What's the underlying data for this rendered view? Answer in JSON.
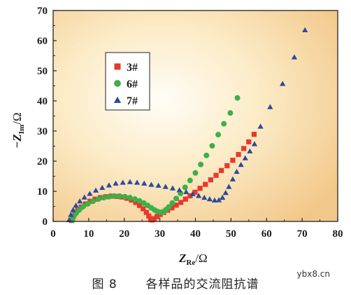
{
  "chart_data": {
    "type": "scatter",
    "xlabel_main": "Z",
    "xlabel_sub": "Re",
    "xlabel_unit": "/Ω",
    "ylabel_main": "−Z",
    "ylabel_sub": "Im",
    "ylabel_unit": "/Ω",
    "xlim": [
      0,
      80
    ],
    "ylim": [
      0,
      70
    ],
    "xticks": [
      "0",
      "10",
      "20",
      "30",
      "40",
      "50",
      "60",
      "70",
      "80"
    ],
    "yticks": [
      "0",
      "10",
      "20",
      "30",
      "40",
      "50",
      "60",
      "70"
    ],
    "legend_position": "upper-left",
    "series": [
      {
        "name": "3#",
        "marker": "square",
        "color": "#e8382b",
        "points": [
          [
            5.2,
            0.3
          ],
          [
            5.5,
            1.4
          ],
          [
            6.1,
            2.6
          ],
          [
            6.9,
            3.7
          ],
          [
            7.9,
            4.8
          ],
          [
            9.1,
            5.8
          ],
          [
            10.4,
            6.7
          ],
          [
            11.8,
            7.4
          ],
          [
            13.3,
            7.9
          ],
          [
            14.8,
            8.2
          ],
          [
            16.3,
            8.4
          ],
          [
            17.8,
            8.3
          ],
          [
            19.3,
            8.1
          ],
          [
            20.7,
            7.7
          ],
          [
            22.0,
            7.1
          ],
          [
            23.2,
            6.3
          ],
          [
            24.3,
            5.3
          ],
          [
            25.3,
            4.2
          ],
          [
            26.2,
            3.0
          ],
          [
            26.9,
            1.8
          ],
          [
            27.4,
            0.8
          ],
          [
            27.8,
            0.5
          ],
          [
            28.4,
            0.9
          ],
          [
            29.2,
            1.6
          ],
          [
            30.1,
            2.3
          ],
          [
            31.1,
            3.0
          ],
          [
            32.2,
            3.7
          ],
          [
            33.4,
            4.5
          ],
          [
            34.6,
            5.4
          ],
          [
            35.9,
            6.3
          ],
          [
            37.2,
            7.4
          ],
          [
            38.5,
            8.5
          ],
          [
            39.9,
            9.7
          ],
          [
            41.3,
            11.0
          ],
          [
            42.8,
            12.3
          ],
          [
            44.3,
            13.8
          ],
          [
            45.8,
            15.3
          ],
          [
            47.3,
            16.9
          ],
          [
            48.9,
            18.5
          ],
          [
            50.5,
            20.3
          ],
          [
            52.1,
            22.2
          ],
          [
            53.6,
            24.2
          ],
          [
            55.0,
            26.4
          ],
          [
            56.5,
            28.9
          ]
        ]
      },
      {
        "name": "6#",
        "marker": "circle",
        "color": "#3cb04a",
        "points": [
          [
            5.4,
            0.4
          ],
          [
            5.8,
            1.6
          ],
          [
            6.5,
            2.8
          ],
          [
            7.4,
            3.9
          ],
          [
            8.5,
            5.0
          ],
          [
            9.8,
            5.9
          ],
          [
            11.2,
            6.7
          ],
          [
            12.7,
            7.4
          ],
          [
            14.2,
            7.9
          ],
          [
            15.7,
            8.2
          ],
          [
            17.2,
            8.4
          ],
          [
            18.7,
            8.4
          ],
          [
            20.2,
            8.2
          ],
          [
            21.6,
            7.9
          ],
          [
            23.0,
            7.4
          ],
          [
            24.3,
            6.8
          ],
          [
            25.5,
            6.1
          ],
          [
            26.6,
            5.3
          ],
          [
            27.6,
            4.5
          ],
          [
            28.5,
            3.8
          ],
          [
            29.3,
            3.3
          ],
          [
            30.1,
            3.0
          ],
          [
            30.9,
            3.2
          ],
          [
            31.7,
            3.9
          ],
          [
            32.5,
            4.8
          ],
          [
            33.5,
            6.1
          ],
          [
            34.6,
            7.6
          ],
          [
            35.8,
            9.3
          ],
          [
            37.1,
            11.3
          ],
          [
            38.5,
            13.6
          ],
          [
            40.0,
            16.1
          ],
          [
            41.5,
            18.9
          ],
          [
            43.1,
            21.9
          ],
          [
            44.7,
            25.1
          ],
          [
            46.4,
            28.8
          ],
          [
            48.0,
            32.4
          ],
          [
            49.8,
            36.0
          ],
          [
            51.8,
            41.0
          ]
        ]
      },
      {
        "name": "7#",
        "marker": "triangle",
        "color": "#2c4a9e",
        "points": [
          [
            4.5,
            0.5
          ],
          [
            5.0,
            2.2
          ],
          [
            5.6,
            3.8
          ],
          [
            6.4,
            5.3
          ],
          [
            7.5,
            6.7
          ],
          [
            8.8,
            8.0
          ],
          [
            10.3,
            9.2
          ],
          [
            12.0,
            10.3
          ],
          [
            13.8,
            11.2
          ],
          [
            15.7,
            12.0
          ],
          [
            17.6,
            12.6
          ],
          [
            19.6,
            12.9
          ],
          [
            21.6,
            13.1
          ],
          [
            23.6,
            12.9
          ],
          [
            25.6,
            12.6
          ],
          [
            27.6,
            12.2
          ],
          [
            29.6,
            11.9
          ],
          [
            31.6,
            11.5
          ],
          [
            33.6,
            11.0
          ],
          [
            35.5,
            10.4
          ],
          [
            37.4,
            9.8
          ],
          [
            39.2,
            9.1
          ],
          [
            40.9,
            8.5
          ],
          [
            42.5,
            7.9
          ],
          [
            44.0,
            7.4
          ],
          [
            45.4,
            7.0
          ],
          [
            46.6,
            7.1
          ],
          [
            47.6,
            7.9
          ],
          [
            48.5,
            9.5
          ],
          [
            49.4,
            11.5
          ],
          [
            50.5,
            14.0
          ],
          [
            51.6,
            16.5
          ],
          [
            52.8,
            18.8
          ],
          [
            54.0,
            21.0
          ],
          [
            55.3,
            23.3
          ],
          [
            56.6,
            25.7
          ],
          [
            58.3,
            31.5
          ],
          [
            61.0,
            38.0
          ],
          [
            64.5,
            45.7
          ],
          [
            67.8,
            54.5
          ],
          [
            70.8,
            63.5
          ]
        ]
      }
    ]
  },
  "caption": {
    "figure_no": "图 8",
    "title": "各样品的交流阻抗谱"
  },
  "watermark": "ybx8.cn"
}
